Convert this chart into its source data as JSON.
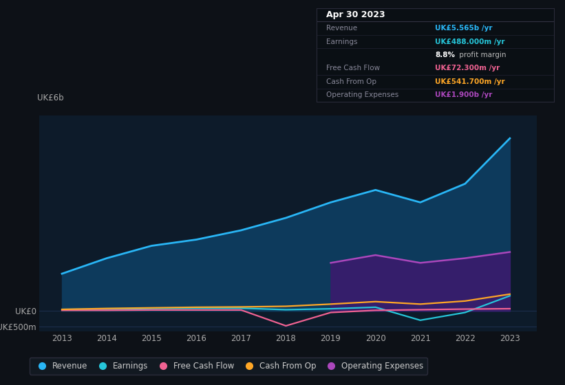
{
  "bg_color": "#0d1117",
  "plot_bg_color": "#0d1b2a",
  "years": [
    2013,
    2014,
    2015,
    2016,
    2017,
    2018,
    2019,
    2020,
    2021,
    2022,
    2023
  ],
  "revenue": [
    1.2,
    1.7,
    2.1,
    2.3,
    2.6,
    3.0,
    3.5,
    3.9,
    3.5,
    4.1,
    5.565
  ],
  "earnings": [
    0.05,
    0.06,
    0.08,
    0.09,
    0.09,
    0.04,
    0.07,
    0.12,
    -0.3,
    -0.05,
    0.488
  ],
  "free_cash_flow": [
    0.02,
    0.02,
    0.03,
    0.03,
    0.03,
    -0.48,
    -0.05,
    0.02,
    0.04,
    0.06,
    0.0723
  ],
  "cash_from_op": [
    0.05,
    0.08,
    0.1,
    0.12,
    0.13,
    0.15,
    0.22,
    0.3,
    0.22,
    0.32,
    0.5417
  ],
  "operating_expenses_line": [
    null,
    null,
    null,
    null,
    null,
    null,
    1.55,
    1.8,
    1.55,
    1.7,
    1.9
  ],
  "operating_expenses_fill": [
    0.0,
    0.0,
    0.0,
    0.0,
    0.0,
    0.0,
    1.55,
    1.8,
    1.55,
    1.7,
    1.9
  ],
  "revenue_color": "#29b6f6",
  "earnings_color": "#26c6da",
  "free_cash_flow_color": "#f06292",
  "cash_from_op_color": "#ffa726",
  "operating_expenses_color": "#ab47bc",
  "revenue_fill_color": "#0d3a5c",
  "operating_expenses_fill_color": "#3d1a6e",
  "ylim": [
    -0.65,
    6.3
  ],
  "xlim": [
    2012.5,
    2023.6
  ],
  "ytick_vals": [
    -0.5,
    0.0
  ],
  "ytick_labels": [
    "-UK£500m",
    "UK£0"
  ],
  "y6b_label": "UK£6b",
  "xlabel_years": [
    2013,
    2014,
    2015,
    2016,
    2017,
    2018,
    2019,
    2020,
    2021,
    2022,
    2023
  ],
  "tooltip_date": "Apr 30 2023",
  "tooltip_rows": [
    {
      "label": "Revenue",
      "value": "UK£5.565b /yr",
      "value_color": "#29b6f6",
      "margin": null
    },
    {
      "label": "Earnings",
      "value": "UK£488.000m /yr",
      "value_color": "#26c6da",
      "margin": "8.8% profit margin"
    },
    {
      "label": "Free Cash Flow",
      "value": "UK£72.300m /yr",
      "value_color": "#f06292",
      "margin": null
    },
    {
      "label": "Cash From Op",
      "value": "UK£541.700m /yr",
      "value_color": "#ffa726",
      "margin": null
    },
    {
      "label": "Operating Expenses",
      "value": "UK£1.900b /yr",
      "value_color": "#ab47bc",
      "margin": null
    }
  ],
  "legend_items": [
    "Revenue",
    "Earnings",
    "Free Cash Flow",
    "Cash From Op",
    "Operating Expenses"
  ],
  "legend_colors": [
    "#29b6f6",
    "#26c6da",
    "#f06292",
    "#ffa726",
    "#ab47bc"
  ]
}
